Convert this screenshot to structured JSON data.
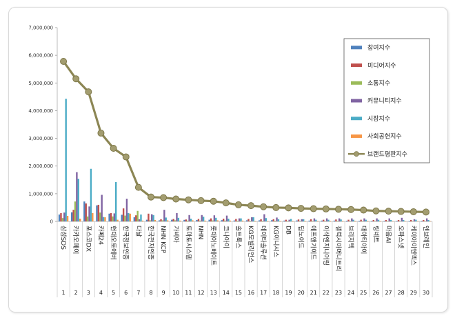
{
  "chart_data": {
    "type": "bar",
    "title": "",
    "xlabel": "",
    "ylabel": "",
    "ylim": [
      0,
      7000000
    ],
    "yticks": [
      "0",
      "1,000,000",
      "2,000,000",
      "3,000,000",
      "4,000,000",
      "5,000,000",
      "6,000,000",
      "7,000,000"
    ],
    "grid": false,
    "legend_position": "top-right",
    "categories": [
      "삼성SDS",
      "카카오페이",
      "포스코DX",
      "카페24",
      "현대오토에버",
      "한국정보인증",
      "다날",
      "한국전자인증",
      "NHN KCP",
      "가비아",
      "토마토시스템",
      "NHN",
      "롯데이노베이트",
      "코나아이",
      "솔트룩스",
      "KG모빌리언스",
      "데이타솔루션",
      "KG이니시스",
      "DB",
      "딥노이드",
      "에프앤가이드",
      "이삭엔지니어링",
      "갤럭시아머니트리",
      "브리지텍",
      "대아티아이",
      "링네트",
      "마음AI",
      "오파스넷",
      "케이아이엔엑스",
      "엔브레인"
    ],
    "ranks": [
      "1",
      "2",
      "3",
      "4",
      "5",
      "6",
      "7",
      "8",
      "9",
      "10",
      "11",
      "12",
      "13",
      "14",
      "15",
      "16",
      "17",
      "18",
      "19",
      "20",
      "21",
      "22",
      "23",
      "24",
      "25",
      "26",
      "27",
      "28",
      "29",
      "30"
    ],
    "series": [
      {
        "name": "참여지수",
        "color": "#4f81bd",
        "kind": "bar",
        "values": [
          250000,
          330000,
          720000,
          580000,
          280000,
          240000,
          150000,
          60000,
          40000,
          60000,
          55000,
          50000,
          60000,
          45000,
          35000,
          40000,
          40000,
          45000,
          30000,
          35000,
          30000,
          30000,
          30000,
          25000,
          25000,
          20000,
          20000,
          20000,
          20000,
          20000
        ]
      },
      {
        "name": "미디어지수",
        "color": "#c0504d",
        "kind": "bar",
        "values": [
          300000,
          420000,
          650000,
          600000,
          300000,
          470000,
          220000,
          280000,
          80000,
          90000,
          70000,
          90000,
          110000,
          100000,
          90000,
          90000,
          80000,
          80000,
          60000,
          70000,
          80000,
          60000,
          70000,
          60000,
          60000,
          50000,
          50000,
          50000,
          50000,
          50000
        ]
      },
      {
        "name": "소통지수",
        "color": "#9bbb59",
        "kind": "bar",
        "values": [
          120000,
          720000,
          180000,
          320000,
          180000,
          210000,
          380000,
          40000,
          40000,
          40000,
          30000,
          30000,
          35000,
          30000,
          25000,
          25000,
          25000,
          25000,
          20000,
          20000,
          20000,
          20000,
          20000,
          20000,
          20000,
          15000,
          15000,
          15000,
          15000,
          15000
        ]
      },
      {
        "name": "커뮤니티지수",
        "color": "#8064a2",
        "kind": "bar",
        "values": [
          320000,
          1780000,
          540000,
          960000,
          290000,
          820000,
          80000,
          260000,
          420000,
          300000,
          230000,
          230000,
          220000,
          210000,
          110000,
          150000,
          260000,
          140000,
          60000,
          80000,
          110000,
          110000,
          110000,
          110000,
          110000,
          110000,
          110000,
          130000,
          80000,
          110000
        ]
      },
      {
        "name": "시장지수",
        "color": "#4bacc6",
        "kind": "bar",
        "values": [
          4430000,
          1540000,
          1900000,
          160000,
          1420000,
          300000,
          250000,
          230000,
          140000,
          130000,
          100000,
          170000,
          130000,
          100000,
          110000,
          150000,
          120000,
          80000,
          90000,
          80000,
          60000,
          60000,
          70000,
          60000,
          60000,
          60000,
          50000,
          50000,
          60000,
          50000
        ]
      },
      {
        "name": "사회공헌지수",
        "color": "#f79646",
        "kind": "bar",
        "values": [
          200000,
          100000,
          300000,
          150000,
          60000,
          280000,
          30000,
          50000,
          40000,
          30000,
          40000,
          30000,
          40000,
          30000,
          30000,
          20000,
          20000,
          20000,
          20000,
          20000,
          20000,
          20000,
          20000,
          20000,
          20000,
          20000,
          15000,
          15000,
          15000,
          15000
        ]
      },
      {
        "name": "브랜드평판지수",
        "color": "#8c8654",
        "kind": "line",
        "values": [
          5780000,
          5150000,
          4680000,
          3190000,
          2640000,
          2330000,
          1230000,
          880000,
          860000,
          810000,
          780000,
          750000,
          730000,
          670000,
          600000,
          570000,
          530000,
          500000,
          490000,
          470000,
          460000,
          450000,
          440000,
          430000,
          410000,
          380000,
          370000,
          360000,
          350000,
          340000
        ]
      }
    ]
  }
}
